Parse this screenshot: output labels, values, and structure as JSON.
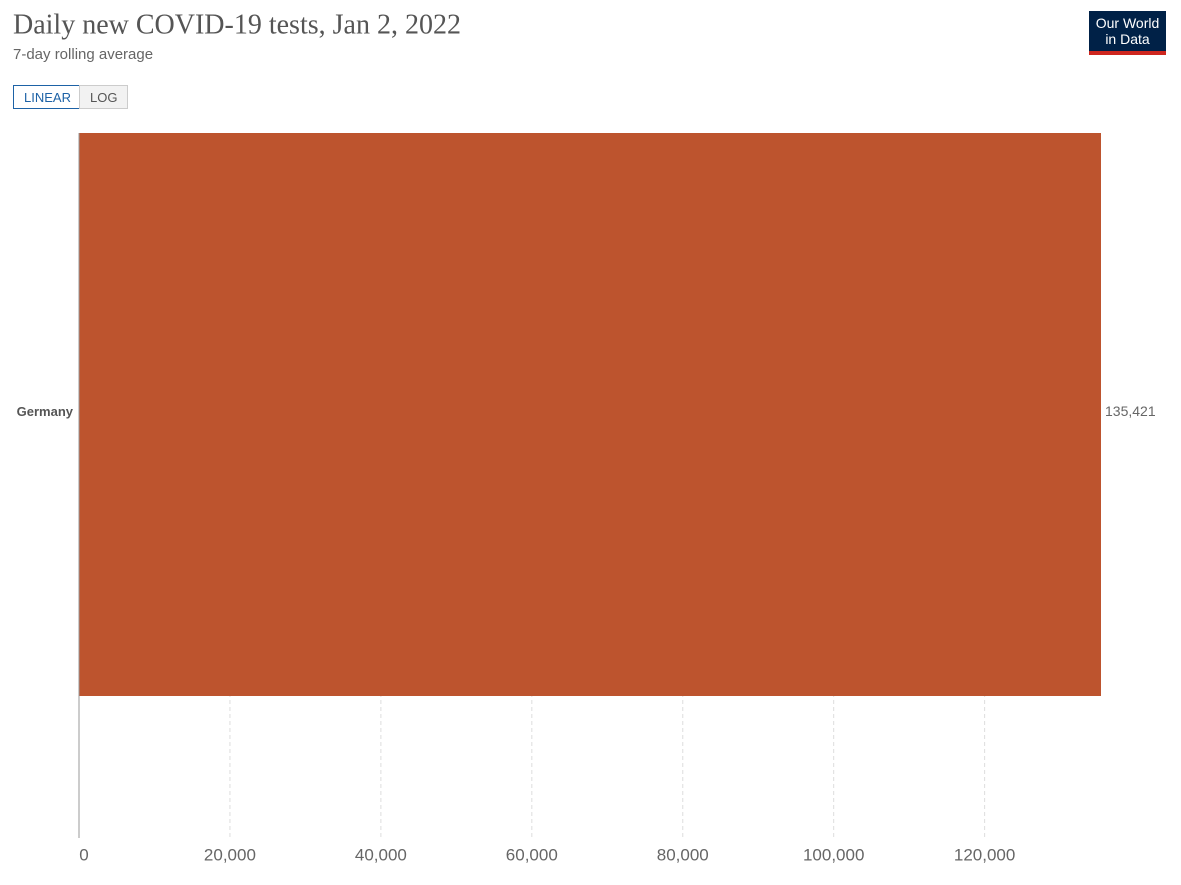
{
  "chart_data": {
    "type": "bar",
    "orientation": "horizontal",
    "title": "Daily new COVID-19 tests, Jan 2, 2022",
    "subtitle": "7-day rolling average",
    "categories": [
      "Germany"
    ],
    "values": [
      135421
    ],
    "value_labels": [
      "135,421"
    ],
    "color": "#bd542e",
    "xlim": [
      0,
      135421
    ],
    "xticks": [
      0,
      {
        "value": 20000,
        "label": "20,000"
      },
      {
        "value": 40000,
        "label": "40,000"
      },
      {
        "value": 60000,
        "label": "60,000"
      },
      {
        "value": 80000,
        "label": "80,000"
      },
      {
        "value": 100000,
        "label": "100,000"
      },
      {
        "value": 120000,
        "label": "120,000"
      }
    ],
    "grid": true,
    "log_scale": false
  },
  "controls": [
    "LINEAR",
    "LOG"
  ],
  "logo": [
    "Our World",
    "in Data"
  ]
}
